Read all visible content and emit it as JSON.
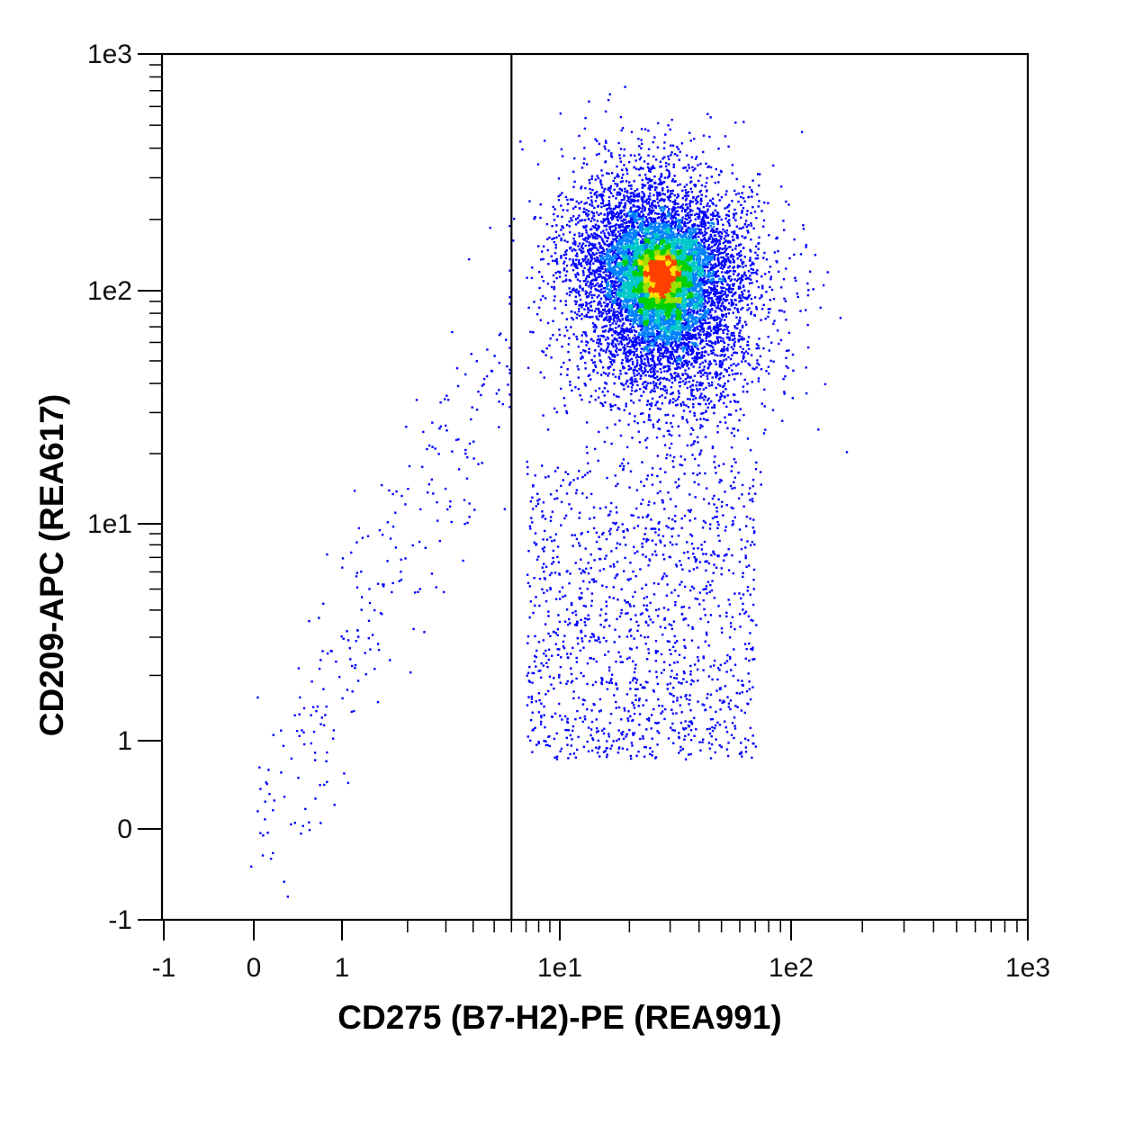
{
  "chart_data": {
    "type": "scatter",
    "subtype": "flow-cytometry density dot plot",
    "xlabel": "CD275 (B7-H2)-PE (REA991)",
    "ylabel": "CD209-APC (REA617)",
    "x_scale": "biexponential (linear near 0, log above)",
    "y_scale": "biexponential (linear near 0, log above)",
    "xlim": [
      -1,
      1000
    ],
    "ylim": [
      -1,
      1000
    ],
    "x_ticks": [
      {
        "value": -1,
        "label": "-1"
      },
      {
        "value": 0,
        "label": "0"
      },
      {
        "value": 1,
        "label": "1"
      },
      {
        "value": 10,
        "label": "1e1"
      },
      {
        "value": 100,
        "label": "1e2"
      },
      {
        "value": 1000,
        "label": "1e3"
      }
    ],
    "y_ticks": [
      {
        "value": -1,
        "label": "-1"
      },
      {
        "value": 0,
        "label": "0"
      },
      {
        "value": 1,
        "label": "1"
      },
      {
        "value": 10,
        "label": "1e1"
      },
      {
        "value": 100,
        "label": "1e2"
      },
      {
        "value": 1000,
        "label": "1e3"
      }
    ],
    "gate": {
      "type": "vertical line",
      "x": 6
    },
    "populations": [
      {
        "shape": "dense elliptical cluster",
        "center": {
          "x": 27,
          "y": 115
        },
        "x_range": [
          12,
          80
        ],
        "y_range": [
          25,
          450
        ]
      },
      {
        "shape": "sparse tail",
        "x_range": [
          5,
          70
        ],
        "y_range": [
          0.8,
          25
        ]
      },
      {
        "shape": "sparse diagonal scatter left of gate",
        "x_range": [
          0.1,
          6
        ],
        "y_range": [
          -0.1,
          300
        ]
      }
    ],
    "density_colors": [
      "#0000ff",
      "#0080ff",
      "#00c8c8",
      "#00d000",
      "#a0e000",
      "#ffe000",
      "#ff4000"
    ],
    "grid": false,
    "legend": "none"
  }
}
